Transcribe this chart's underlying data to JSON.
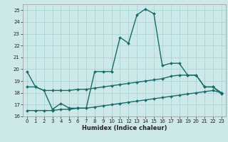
{
  "title": "",
  "xlabel": "Humidex (Indice chaleur)",
  "bg_color": "#cce8e8",
  "grid_color": "#aad4d4",
  "line_color": "#1a6b6b",
  "xlim": [
    -0.5,
    23.5
  ],
  "ylim": [
    16,
    25.5
  ],
  "xticks": [
    0,
    1,
    2,
    3,
    4,
    5,
    6,
    7,
    8,
    9,
    10,
    11,
    12,
    13,
    14,
    15,
    16,
    17,
    18,
    19,
    20,
    21,
    22,
    23
  ],
  "yticks": [
    16,
    17,
    18,
    19,
    20,
    21,
    22,
    23,
    24,
    25
  ],
  "line1_x": [
    0,
    1,
    2,
    3,
    4,
    5,
    6,
    7,
    8,
    9,
    10,
    11,
    12,
    13,
    14,
    15,
    16,
    17,
    18,
    19,
    20,
    21,
    22,
    23
  ],
  "line1_y": [
    19.8,
    18.5,
    18.2,
    16.6,
    17.1,
    16.7,
    16.7,
    16.7,
    19.8,
    19.8,
    19.8,
    22.7,
    22.2,
    24.6,
    25.1,
    24.7,
    20.3,
    20.5,
    20.5,
    19.5,
    19.5,
    18.5,
    18.5,
    17.9
  ],
  "line2_x": [
    0,
    1,
    2,
    3,
    4,
    5,
    6,
    7,
    8,
    9,
    10,
    11,
    12,
    13,
    14,
    15,
    16,
    17,
    18,
    19,
    20,
    21,
    22,
    23
  ],
  "line2_y": [
    18.5,
    18.5,
    18.2,
    18.2,
    18.2,
    18.2,
    18.3,
    18.3,
    18.4,
    18.5,
    18.6,
    18.7,
    18.8,
    18.9,
    19.0,
    19.1,
    19.2,
    19.4,
    19.5,
    19.5,
    19.5,
    18.5,
    18.5,
    18.0
  ],
  "line3_x": [
    0,
    1,
    2,
    3,
    4,
    5,
    6,
    7,
    8,
    9,
    10,
    11,
    12,
    13,
    14,
    15,
    16,
    17,
    18,
    19,
    20,
    21,
    22,
    23
  ],
  "line3_y": [
    16.5,
    16.5,
    16.5,
    16.5,
    16.6,
    16.6,
    16.7,
    16.7,
    16.8,
    16.9,
    17.0,
    17.1,
    17.2,
    17.3,
    17.4,
    17.5,
    17.6,
    17.7,
    17.8,
    17.9,
    18.0,
    18.1,
    18.2,
    18.0
  ],
  "xlabel_fontsize": 6,
  "tick_fontsize": 5,
  "linewidth": 1.0,
  "markersize": 2.0
}
